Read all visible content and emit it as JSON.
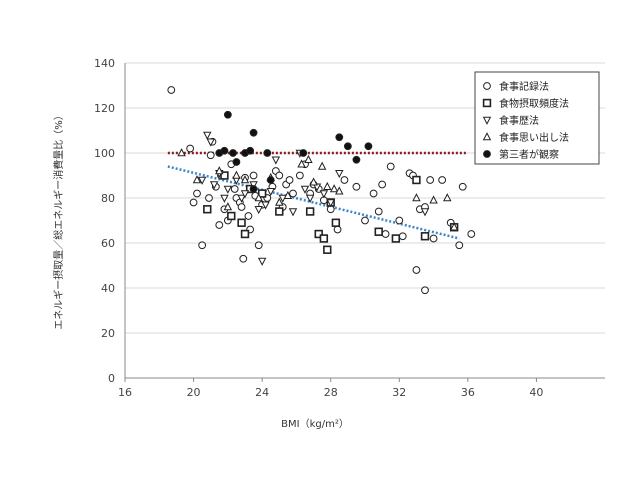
{
  "chart_data": {
    "type": "scatter",
    "xlabel": "BMI（kg/m²）",
    "ylabel": "エネルギー摂取量／総エネルギー消費量比（%）",
    "xlim": [
      16,
      44
    ],
    "ylim": [
      0,
      140
    ],
    "x_ticks": [
      16,
      20,
      24,
      28,
      32,
      36,
      40
    ],
    "y_ticks": [
      0,
      20,
      40,
      60,
      80,
      100,
      120,
      140
    ],
    "grid": "horizontal",
    "legend_position": "top-right",
    "series": [
      {
        "name": "食事記録法",
        "marker": "open-circle",
        "points": [
          [
            18.7,
            128
          ],
          [
            19.8,
            102
          ],
          [
            20.0,
            78
          ],
          [
            20.2,
            82
          ],
          [
            20.5,
            59
          ],
          [
            20.9,
            80
          ],
          [
            21.0,
            99
          ],
          [
            21.1,
            105
          ],
          [
            21.3,
            85
          ],
          [
            21.5,
            68
          ],
          [
            21.6,
            90
          ],
          [
            21.8,
            75
          ],
          [
            22.0,
            70
          ],
          [
            22.2,
            95
          ],
          [
            22.4,
            84
          ],
          [
            22.5,
            80
          ],
          [
            22.7,
            78
          ],
          [
            22.8,
            76
          ],
          [
            22.9,
            53
          ],
          [
            23.0,
            89
          ],
          [
            23.2,
            72
          ],
          [
            23.3,
            66
          ],
          [
            23.5,
            90
          ],
          [
            23.6,
            81
          ],
          [
            23.8,
            59
          ],
          [
            24.0,
            77
          ],
          [
            24.3,
            80
          ],
          [
            24.6,
            85
          ],
          [
            24.8,
            92
          ],
          [
            25.0,
            90
          ],
          [
            25.2,
            76
          ],
          [
            25.4,
            86
          ],
          [
            25.6,
            88
          ],
          [
            25.8,
            82
          ],
          [
            26.2,
            90
          ],
          [
            26.5,
            95
          ],
          [
            26.8,
            82
          ],
          [
            27.0,
            86
          ],
          [
            27.3,
            84
          ],
          [
            27.6,
            79
          ],
          [
            28.0,
            75
          ],
          [
            28.4,
            66
          ],
          [
            28.8,
            88
          ],
          [
            29.5,
            85
          ],
          [
            30.0,
            70
          ],
          [
            30.5,
            82
          ],
          [
            31.0,
            86
          ],
          [
            31.2,
            64
          ],
          [
            31.5,
            94
          ],
          [
            32.0,
            70
          ],
          [
            32.2,
            63
          ],
          [
            32.6,
            91
          ],
          [
            32.8,
            90
          ],
          [
            33.0,
            48
          ],
          [
            33.2,
            75
          ],
          [
            33.5,
            76
          ],
          [
            33.8,
            88
          ],
          [
            34.0,
            62
          ],
          [
            34.5,
            88
          ],
          [
            35.0,
            69
          ],
          [
            35.5,
            59
          ],
          [
            35.7,
            85
          ],
          [
            36.2,
            64
          ],
          [
            33.5,
            39
          ],
          [
            30.8,
            74
          ]
        ]
      },
      {
        "name": "食物摂取頻度法",
        "marker": "open-square",
        "points": [
          [
            20.8,
            75
          ],
          [
            21.8,
            90
          ],
          [
            22.2,
            72
          ],
          [
            22.8,
            69
          ],
          [
            23.0,
            64
          ],
          [
            23.3,
            84
          ],
          [
            24.0,
            82
          ],
          [
            25.0,
            74
          ],
          [
            26.8,
            74
          ],
          [
            27.3,
            64
          ],
          [
            27.6,
            62
          ],
          [
            27.8,
            57
          ],
          [
            28.0,
            78
          ],
          [
            28.3,
            69
          ],
          [
            30.8,
            65
          ],
          [
            31.8,
            62
          ],
          [
            33.0,
            88
          ],
          [
            33.5,
            63
          ],
          [
            35.2,
            67
          ]
        ]
      },
      {
        "name": "食事歴法",
        "marker": "open-triangle-down",
        "points": [
          [
            20.5,
            88
          ],
          [
            20.8,
            108
          ],
          [
            21.0,
            105
          ],
          [
            21.2,
            86
          ],
          [
            21.5,
            91
          ],
          [
            21.8,
            80
          ],
          [
            22.0,
            84
          ],
          [
            22.5,
            88
          ],
          [
            22.8,
            80
          ],
          [
            23.0,
            82
          ],
          [
            23.5,
            86
          ],
          [
            23.8,
            75
          ],
          [
            24.0,
            52
          ],
          [
            24.2,
            77
          ],
          [
            24.5,
            83
          ],
          [
            24.8,
            97
          ],
          [
            25.2,
            80
          ],
          [
            25.8,
            74
          ],
          [
            26.2,
            100
          ],
          [
            26.5,
            84
          ],
          [
            26.8,
            80
          ],
          [
            27.2,
            85
          ],
          [
            27.6,
            82
          ],
          [
            28.0,
            78
          ],
          [
            28.5,
            91
          ],
          [
            33.5,
            74
          ]
        ]
      },
      {
        "name": "食事思い出し法",
        "marker": "open-triangle-up",
        "points": [
          [
            19.3,
            100
          ],
          [
            20.2,
            88
          ],
          [
            21.5,
            92
          ],
          [
            22.0,
            76
          ],
          [
            22.5,
            90
          ],
          [
            23.0,
            88
          ],
          [
            23.8,
            80
          ],
          [
            24.5,
            89
          ],
          [
            25.0,
            78
          ],
          [
            25.5,
            81
          ],
          [
            26.3,
            95
          ],
          [
            26.7,
            97
          ],
          [
            27.0,
            87
          ],
          [
            27.5,
            94
          ],
          [
            27.8,
            85
          ],
          [
            28.2,
            84
          ],
          [
            28.5,
            83
          ],
          [
            33.0,
            80
          ],
          [
            34.0,
            79
          ],
          [
            34.8,
            80
          ],
          [
            35.2,
            67
          ]
        ]
      },
      {
        "name": "第三者が観察",
        "marker": "filled-circle",
        "points": [
          [
            21.5,
            100
          ],
          [
            21.8,
            101
          ],
          [
            22.0,
            117
          ],
          [
            22.3,
            100
          ],
          [
            22.5,
            96
          ],
          [
            23.0,
            100
          ],
          [
            23.3,
            101
          ],
          [
            23.5,
            109
          ],
          [
            23.5,
            84
          ],
          [
            24.3,
            100
          ],
          [
            24.5,
            88
          ],
          [
            26.4,
            100
          ],
          [
            28.5,
            107
          ],
          [
            29.0,
            103
          ],
          [
            29.5,
            97
          ],
          [
            30.2,
            103
          ]
        ]
      }
    ],
    "reference_lines": [
      {
        "kind": "horizontal",
        "y": 100,
        "x_range": [
          18.5,
          36
        ],
        "color": "#8b1a1a",
        "style": "dotted"
      },
      {
        "kind": "trend",
        "points": [
          [
            18.5,
            94
          ],
          [
            35.5,
            62
          ]
        ],
        "color": "#3a86c8",
        "style": "dotted"
      }
    ]
  }
}
